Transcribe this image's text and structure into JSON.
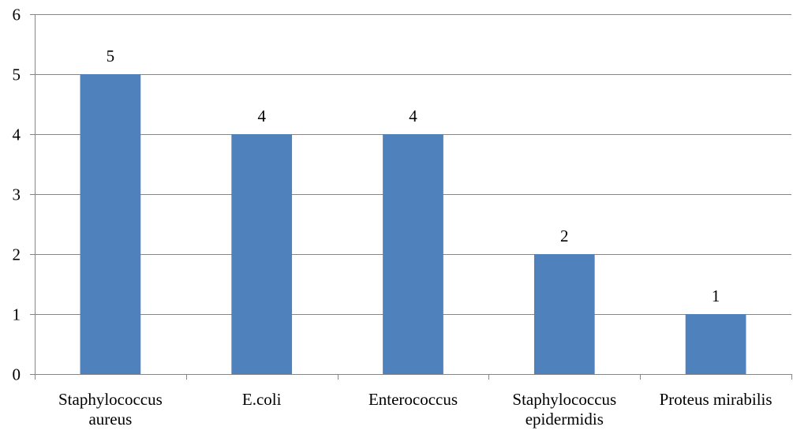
{
  "chart_data": {
    "type": "bar",
    "categories": [
      [
        "Staphylococcus",
        "aureus"
      ],
      [
        "E.coli"
      ],
      [
        "Enterococcus"
      ],
      [
        "Staphylococcus",
        "epidermidis"
      ],
      [
        "Proteus mirabilis"
      ]
    ],
    "values": [
      5,
      4,
      4,
      2,
      1
    ],
    "data_labels": [
      "5",
      "4",
      "4",
      "2",
      "1"
    ],
    "ylim": [
      0,
      6
    ],
    "yticks": [
      0,
      1,
      2,
      3,
      4,
      5,
      6
    ],
    "ytick_labels": [
      "0",
      "1",
      "2",
      "3",
      "4",
      "5",
      "6"
    ],
    "grid": true,
    "legend": "none",
    "title": "",
    "xlabel": "",
    "ylabel": ""
  },
  "colors": {
    "bar": "#4f81bd",
    "gridline": "#868686",
    "axis": "#868686",
    "text": "#000000"
  }
}
